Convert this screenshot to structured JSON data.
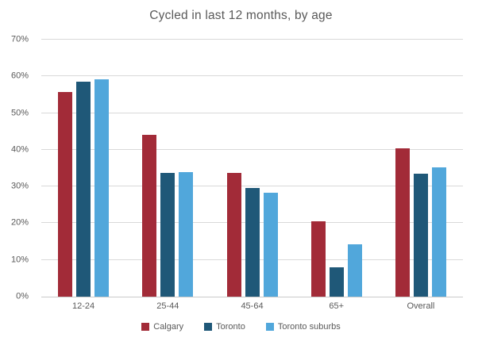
{
  "chart_data": {
    "type": "bar",
    "title": "Cycled in last 12 months, by age",
    "categories": [
      "12-24",
      "25-44",
      "45-64",
      "65+",
      "Overall"
    ],
    "series": [
      {
        "name": "Calgary",
        "color": "#a22b38",
        "values": [
          55.8,
          44.0,
          33.8,
          20.5,
          40.5
        ]
      },
      {
        "name": "Toronto",
        "color": "#1f5878",
        "values": [
          58.5,
          33.7,
          29.5,
          8.0,
          33.4
        ]
      },
      {
        "name": "Toronto suburbs",
        "color": "#51a7db",
        "values": [
          59.2,
          34.0,
          28.3,
          14.2,
          35.2
        ]
      }
    ],
    "xlabel": "",
    "ylabel": "",
    "ylim": [
      0,
      70
    ],
    "ytick_step": 10,
    "ytick_labels": [
      "0%",
      "10%",
      "20%",
      "30%",
      "40%",
      "50%",
      "60%",
      "70%"
    ],
    "grid": true,
    "legend_position": "bottom",
    "gridline_color": "#d9d9d9",
    "axis_line_color": "#c9c9c9",
    "text_color": "#595959"
  }
}
